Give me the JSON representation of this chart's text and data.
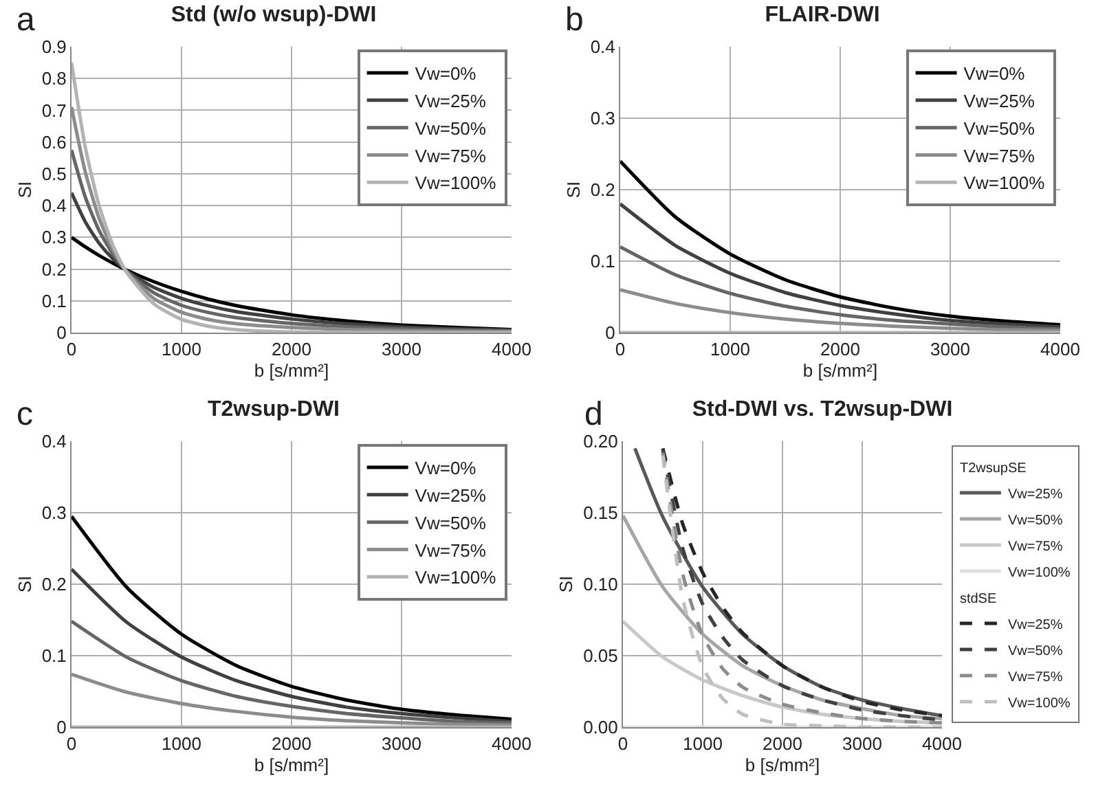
{
  "chart_data": [
    {
      "type": "line",
      "title": "Std (w/o wsup)-DWI",
      "xlabel": "b [s/mm²]",
      "ylabel": "SI",
      "annotations": [
        "a"
      ],
      "x": [
        0,
        125,
        250,
        375,
        500,
        750,
        1000,
        1250,
        1500,
        2000,
        2500,
        3000,
        3500,
        4000
      ],
      "xlim": [
        0,
        4000
      ],
      "xticks": [
        0,
        1000,
        2000,
        3000,
        4000
      ],
      "ylim": [
        0,
        0.9
      ],
      "yticks": [
        0,
        0.1,
        0.2,
        0.3,
        0.4,
        0.5,
        0.6,
        0.7,
        0.8,
        0.9
      ],
      "grid": true,
      "legend": "top right",
      "series": [
        {
          "name": "Vw=0%",
          "color": "#000000",
          "values": [
            0.3,
            0.27,
            0.243,
            0.219,
            0.197,
            0.16,
            0.13,
            0.105,
            0.085,
            0.056,
            0.037,
            0.024,
            0.016,
            0.01
          ]
        },
        {
          "name": "Vw=25%",
          "color": "#404040",
          "values": [
            0.44,
            0.349,
            0.282,
            0.233,
            0.195,
            0.142,
            0.108,
            0.084,
            0.066,
            0.043,
            0.028,
            0.018,
            0.012,
            0.008
          ]
        },
        {
          "name": "Vw=50%",
          "color": "#666666",
          "values": [
            0.575,
            0.427,
            0.322,
            0.248,
            0.194,
            0.125,
            0.086,
            0.063,
            0.047,
            0.029,
            0.019,
            0.012,
            0.008,
            0.005
          ]
        },
        {
          "name": "Vw=75%",
          "color": "#8c8c8c",
          "values": [
            0.71,
            0.506,
            0.361,
            0.262,
            0.192,
            0.107,
            0.064,
            0.041,
            0.028,
            0.016,
            0.01,
            0.006,
            0.004,
            0.003
          ]
        },
        {
          "name": "Vw=100%",
          "color": "#b3b3b3",
          "values": [
            0.85,
            0.584,
            0.401,
            0.276,
            0.19,
            0.09,
            0.042,
            0.02,
            0.009,
            0.002,
            0.001,
            0,
            0,
            0
          ]
        }
      ]
    },
    {
      "type": "line",
      "title": "FLAIR-DWI",
      "xlabel": "b [s/mm²]",
      "ylabel": "SI",
      "annotations": [
        "b"
      ],
      "x": [
        0,
        500,
        1000,
        1500,
        2000,
        2500,
        3000,
        3500,
        4000
      ],
      "xlim": [
        0,
        4000
      ],
      "xticks": [
        0,
        1000,
        2000,
        3000,
        4000
      ],
      "ylim": [
        0,
        0.4
      ],
      "yticks": [
        0,
        0.1,
        0.2,
        0.3,
        0.4
      ],
      "grid": true,
      "legend": "top right",
      "series": [
        {
          "name": "Vw=0%",
          "color": "#000000",
          "values": [
            0.24,
            0.162,
            0.11,
            0.074,
            0.05,
            0.034,
            0.023,
            0.016,
            0.011
          ]
        },
        {
          "name": "Vw=25%",
          "color": "#404040",
          "values": [
            0.18,
            0.122,
            0.083,
            0.056,
            0.038,
            0.026,
            0.017,
            0.012,
            0.008
          ]
        },
        {
          "name": "Vw=50%",
          "color": "#666666",
          "values": [
            0.12,
            0.081,
            0.055,
            0.037,
            0.025,
            0.017,
            0.012,
            0.008,
            0.005
          ]
        },
        {
          "name": "Vw=75%",
          "color": "#8c8c8c",
          "values": [
            0.06,
            0.041,
            0.028,
            0.019,
            0.013,
            0.009,
            0.006,
            0.004,
            0.003
          ]
        },
        {
          "name": "Vw=100%",
          "color": "#b3b3b3",
          "values": [
            0,
            0,
            0,
            0,
            0,
            0,
            0,
            0,
            0
          ]
        }
      ]
    },
    {
      "type": "line",
      "title": "T2wsup-DWI",
      "xlabel": "b [s/mm²]",
      "ylabel": "SI",
      "annotations": [
        "c"
      ],
      "x": [
        0,
        500,
        1000,
        1500,
        2000,
        2500,
        3000,
        3500,
        4000
      ],
      "xlim": [
        0,
        4000
      ],
      "xticks": [
        0,
        1000,
        2000,
        3000,
        4000
      ],
      "ylim": [
        0,
        0.4
      ],
      "yticks": [
        0,
        0.1,
        0.2,
        0.3,
        0.4
      ],
      "grid": true,
      "legend": "top right",
      "series": [
        {
          "name": "Vw=0%",
          "color": "#000000",
          "values": [
            0.295,
            0.196,
            0.13,
            0.086,
            0.057,
            0.038,
            0.025,
            0.017,
            0.011
          ]
        },
        {
          "name": "Vw=25%",
          "color": "#404040",
          "values": [
            0.221,
            0.147,
            0.098,
            0.065,
            0.043,
            0.028,
            0.019,
            0.013,
            0.008
          ]
        },
        {
          "name": "Vw=50%",
          "color": "#666666",
          "values": [
            0.148,
            0.098,
            0.065,
            0.043,
            0.029,
            0.019,
            0.013,
            0.008,
            0.006
          ]
        },
        {
          "name": "Vw=75%",
          "color": "#8c8c8c",
          "values": [
            0.074,
            0.049,
            0.033,
            0.022,
            0.014,
            0.009,
            0.006,
            0.004,
            0.003
          ]
        },
        {
          "name": "Vw=100%",
          "color": "#b3b3b3",
          "values": [
            0,
            0,
            0,
            0,
            0,
            0,
            0,
            0,
            0
          ]
        }
      ]
    },
    {
      "type": "line",
      "title": "Std-DWI vs. T2wsup-DWI",
      "xlabel": "b [s/mm²]",
      "ylabel": "SI",
      "annotations": [
        "d",
        "T2wsupSE",
        "stdSE"
      ],
      "xlim": [
        0,
        4000
      ],
      "xticks": [
        0,
        1000,
        2000,
        3000,
        4000
      ],
      "ylim": [
        0,
        0.2
      ],
      "yticks": [
        {
          "value": 0,
          "label": "0.00"
        },
        {
          "value": 0.05,
          "label": "0.05"
        },
        {
          "value": 0.1,
          "label": "0.10"
        },
        {
          "value": 0.15,
          "label": "0.15"
        },
        {
          "value": 0.2,
          "label": "0.20"
        }
      ],
      "grid": true,
      "legend": "right",
      "series": [
        {
          "name": "Vw=25%",
          "color": "#595959",
          "line_style": "solid",
          "x": [
            150,
            500,
            1000,
            1500,
            2000,
            2500,
            3000,
            3500,
            4000
          ],
          "values": [
            0.195,
            0.147,
            0.098,
            0.065,
            0.043,
            0.028,
            0.019,
            0.013,
            0.008
          ]
        },
        {
          "name": "Vw=50%",
          "color": "#a6a6a6",
          "line_style": "solid",
          "x": [
            0,
            500,
            1000,
            1500,
            2000,
            2500,
            3000,
            3500,
            4000
          ],
          "values": [
            0.148,
            0.098,
            0.065,
            0.043,
            0.029,
            0.019,
            0.013,
            0.008,
            0.006
          ]
        },
        {
          "name": "Vw=75%",
          "color": "#c8c8c8",
          "line_style": "solid",
          "x": [
            0,
            500,
            1000,
            1500,
            2000,
            2500,
            3000,
            3500,
            4000
          ],
          "values": [
            0.074,
            0.049,
            0.033,
            0.022,
            0.014,
            0.009,
            0.006,
            0.004,
            0.003
          ]
        },
        {
          "name": "Vw=100%",
          "color": "#e0e0e0",
          "line_style": "solid",
          "x": [
            0,
            500,
            1000,
            1500,
            2000,
            2500,
            3000,
            3500,
            4000
          ],
          "values": [
            0,
            0,
            0,
            0,
            0,
            0,
            0,
            0,
            0
          ]
        },
        {
          "name": "Vw=25%",
          "color": "#262626",
          "line_style": "dashed",
          "x": [
            500,
            750,
            1000,
            1250,
            1500,
            2000,
            2500,
            3000,
            3500,
            4000
          ],
          "values": [
            0.195,
            0.142,
            0.108,
            0.084,
            0.066,
            0.043,
            0.028,
            0.018,
            0.012,
            0.008
          ]
        },
        {
          "name": "Vw=50%",
          "color": "#404040",
          "line_style": "dashed",
          "x": [
            500,
            750,
            1000,
            1250,
            1500,
            2000,
            2500,
            3000,
            3500,
            4000
          ],
          "values": [
            0.194,
            0.125,
            0.086,
            0.063,
            0.047,
            0.029,
            0.019,
            0.012,
            0.008,
            0.005
          ]
        },
        {
          "name": "Vw=75%",
          "color": "#8c8c8c",
          "line_style": "dashed",
          "x": [
            500,
            750,
            1000,
            1250,
            1500,
            2000,
            2500,
            3000,
            3500,
            4000
          ],
          "values": [
            0.192,
            0.107,
            0.064,
            0.041,
            0.028,
            0.016,
            0.01,
            0.006,
            0.004,
            0.003
          ]
        },
        {
          "name": "Vw=100%",
          "color": "#bfbfbf",
          "line_style": "dashed",
          "x": [
            500,
            750,
            1000,
            1250,
            1500,
            2000,
            2500,
            3000,
            3500,
            4000
          ],
          "values": [
            0.19,
            0.09,
            0.042,
            0.02,
            0.009,
            0.002,
            0.001,
            0,
            0,
            0
          ]
        }
      ]
    }
  ]
}
